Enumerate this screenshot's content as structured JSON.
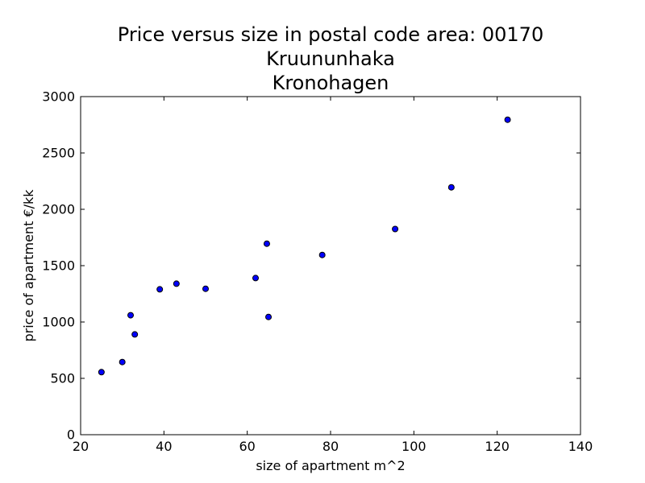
{
  "chart_data": {
    "type": "scatter",
    "title_lines": [
      "Price versus size in postal code area: 00170",
      "Kruununhaka",
      "Kronohagen"
    ],
    "xlabel": "size of apartment m^2",
    "ylabel": "price of apartment €/kk",
    "xlim": [
      20,
      140
    ],
    "ylim": [
      0,
      3000
    ],
    "xticks": [
      20,
      40,
      60,
      80,
      100,
      120,
      140
    ],
    "yticks": [
      0,
      500,
      1000,
      1500,
      2000,
      2500,
      3000
    ],
    "grid": false,
    "marker_color": "#0000ff",
    "marker_edge_color": "#000000",
    "points": [
      {
        "x": 25,
        "y": 555
      },
      {
        "x": 30,
        "y": 645
      },
      {
        "x": 32,
        "y": 1060
      },
      {
        "x": 33,
        "y": 890
      },
      {
        "x": 39,
        "y": 1290
      },
      {
        "x": 43,
        "y": 1340
      },
      {
        "x": 50,
        "y": 1295
      },
      {
        "x": 62,
        "y": 1390
      },
      {
        "x": 64.7,
        "y": 1695
      },
      {
        "x": 65.1,
        "y": 1045
      },
      {
        "x": 78,
        "y": 1595
      },
      {
        "x": 95.5,
        "y": 1825
      },
      {
        "x": 109,
        "y": 2195
      },
      {
        "x": 122.5,
        "y": 2795
      }
    ]
  }
}
